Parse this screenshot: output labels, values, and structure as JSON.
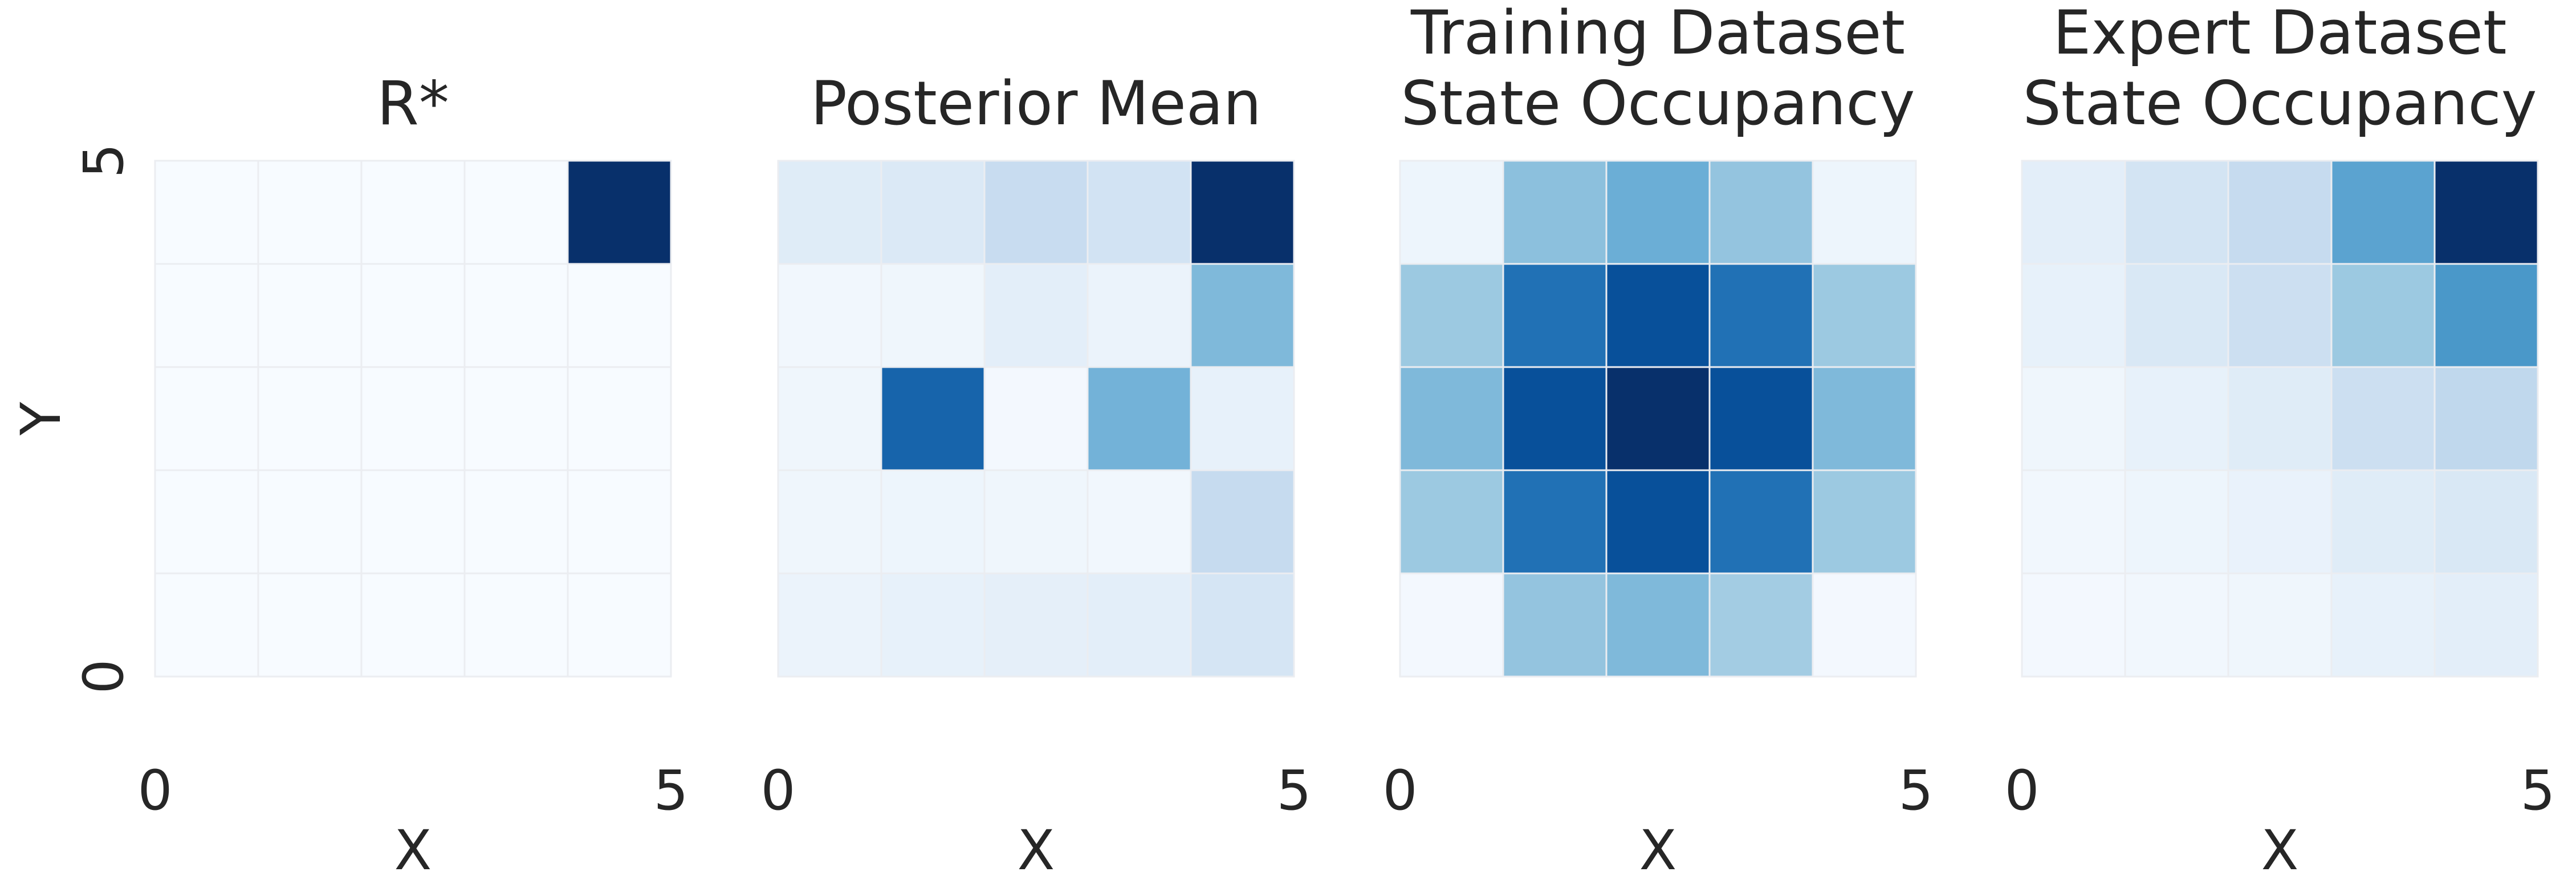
{
  "colors": {
    "colormap": "Blues",
    "text": "#262626",
    "cell_border": "#ebedf1",
    "background": "#ffffff"
  },
  "chart_data": [
    {
      "type": "heatmap",
      "title": "R*",
      "xlabel": "X",
      "ylabel": "Y",
      "xlim": [
        0,
        5
      ],
      "ylim": [
        0,
        5
      ],
      "x_tick_labels": [
        "0",
        "5"
      ],
      "y_tick_labels": [
        "0",
        "5"
      ],
      "grid": "5x5",
      "rows_top_to_bottom": [
        [
          0,
          0,
          0,
          0,
          1
        ],
        [
          0,
          0,
          0,
          0,
          0
        ],
        [
          0,
          0,
          0,
          0,
          0
        ],
        [
          0,
          0,
          0,
          0,
          0
        ],
        [
          0,
          0,
          0,
          0,
          0
        ]
      ]
    },
    {
      "type": "heatmap",
      "title": "Posterior Mean",
      "xlabel": "X",
      "ylabel": "",
      "xlim": [
        0,
        5
      ],
      "ylim": [
        0,
        5
      ],
      "x_tick_labels": [
        "0",
        "5"
      ],
      "y_tick_labels": [],
      "grid": "5x5",
      "rows_top_to_bottom": [
        [
          0.12,
          0.14,
          0.24,
          0.19,
          1.0
        ],
        [
          0.03,
          0.04,
          0.1,
          0.06,
          0.45
        ],
        [
          0.04,
          0.8,
          0.02,
          0.48,
          0.08
        ],
        [
          0.04,
          0.05,
          0.04,
          0.03,
          0.25
        ],
        [
          0.06,
          0.08,
          0.09,
          0.1,
          0.17
        ]
      ]
    },
    {
      "type": "heatmap",
      "title": "Training Dataset State Occupancy",
      "title_lines": [
        "Training Dataset",
        "State Occupancy"
      ],
      "xlabel": "X",
      "ylabel": "",
      "xlim": [
        0,
        5
      ],
      "ylim": [
        0,
        5
      ],
      "x_tick_labels": [
        "0",
        "5"
      ],
      "y_tick_labels": [],
      "grid": "5x5",
      "rows_top_to_bottom": [
        [
          0.05,
          0.42,
          0.5,
          0.4,
          0.05
        ],
        [
          0.38,
          0.75,
          0.88,
          0.75,
          0.38
        ],
        [
          0.45,
          0.88,
          1.0,
          0.88,
          0.45
        ],
        [
          0.38,
          0.75,
          0.88,
          0.75,
          0.38
        ],
        [
          0.02,
          0.4,
          0.45,
          0.36,
          0.02
        ]
      ]
    },
    {
      "type": "heatmap",
      "title": "Expert Dataset State Occupancy",
      "title_lines": [
        "Expert Dataset",
        "State Occupancy"
      ],
      "xlabel": "X",
      "ylabel": "",
      "xlim": [
        0,
        5
      ],
      "ylim": [
        0,
        5
      ],
      "x_tick_labels": [
        "0",
        "5"
      ],
      "y_tick_labels": [],
      "grid": "5x5",
      "rows_top_to_bottom": [
        [
          0.1,
          0.18,
          0.25,
          0.55,
          1.0
        ],
        [
          0.08,
          0.15,
          0.22,
          0.38,
          0.6
        ],
        [
          0.04,
          0.08,
          0.12,
          0.22,
          0.27
        ],
        [
          0.03,
          0.05,
          0.07,
          0.12,
          0.15
        ],
        [
          0.02,
          0.03,
          0.04,
          0.08,
          0.1
        ]
      ]
    }
  ]
}
